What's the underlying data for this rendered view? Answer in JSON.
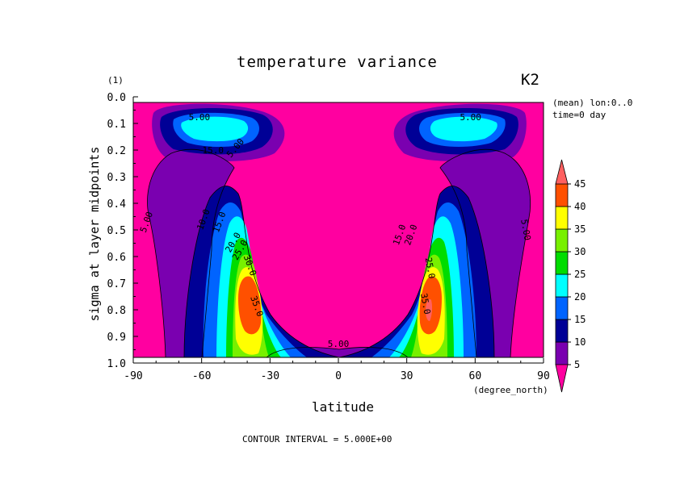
{
  "chart_data": {
    "type": "contour",
    "title": "temperature variance",
    "tag": "K2",
    "ylabel": "sigma at layer midpoints",
    "yunit": "(1)",
    "xlabel": "latitude",
    "xunit": "(degree_north)",
    "info_line1": "(mean) lon:0..0",
    "info_line2": "time=0 day",
    "footer": "CONTOUR INTERVAL = 5.000E+00",
    "xlim": [
      -90,
      90
    ],
    "ylim": [
      1.0,
      0.0
    ],
    "x_ticks": [
      -90,
      -60,
      -30,
      0,
      30,
      60,
      90
    ],
    "x_tick_labels": [
      "-90",
      "-60",
      "-30",
      "0",
      "30",
      "60",
      "90"
    ],
    "y_ticks": [
      0.0,
      0.1,
      0.2,
      0.3,
      0.4,
      0.5,
      0.6,
      0.7,
      0.8,
      0.9,
      1.0
    ],
    "y_tick_labels": [
      "0.0",
      "0.1",
      "0.2",
      "0.3",
      "0.4",
      "0.5",
      "0.6",
      "0.7",
      "0.8",
      "0.9",
      "1.0"
    ],
    "levels": [
      5,
      10,
      15,
      20,
      25,
      30,
      35,
      40,
      45
    ],
    "level_labels": [
      "5",
      "10",
      "15",
      "20",
      "25",
      "30",
      "35",
      "40",
      "45"
    ],
    "colors": [
      "#ff00a0",
      "#7a00b0",
      "#000096",
      "#0064ff",
      "#00ffff",
      "#00dc00",
      "#78f000",
      "#ffff00",
      "#ff5000",
      "#ff6060"
    ],
    "contour_labels": [
      {
        "text": "5.00",
        "lat": -84,
        "sigma": 0.47,
        "rot": -70
      },
      {
        "text": "10.0",
        "lat": -59,
        "sigma": 0.46,
        "rot": -70
      },
      {
        "text": "15.0",
        "lat": -52,
        "sigma": 0.47,
        "rot": -70
      },
      {
        "text": "20.0",
        "lat": -46,
        "sigma": 0.55,
        "rot": -60
      },
      {
        "text": "25.0",
        "lat": -43,
        "sigma": 0.58,
        "rot": -60
      },
      {
        "text": "30.0",
        "lat": -39,
        "sigma": 0.64,
        "rot": 70
      },
      {
        "text": "35.0",
        "lat": -36,
        "sigma": 0.8,
        "rot": 70
      },
      {
        "text": "5.00",
        "lat": 0,
        "sigma": 0.95,
        "rot": 0
      },
      {
        "text": "15.0",
        "lat": 27,
        "sigma": 0.52,
        "rot": -70
      },
      {
        "text": "20.0",
        "lat": 32,
        "sigma": 0.52,
        "rot": -70
      },
      {
        "text": "25.0",
        "lat": 40,
        "sigma": 0.65,
        "rot": 80
      },
      {
        "text": "35.0",
        "lat": 38,
        "sigma": 0.79,
        "rot": 80
      },
      {
        "text": "5.00",
        "lat": 82,
        "sigma": 0.5,
        "rot": 80
      },
      {
        "text": "5.00",
        "lat": -61,
        "sigma": 0.06,
        "rot": 0
      },
      {
        "text": "15.0",
        "lat": -55,
        "sigma": 0.19,
        "rot": 0
      },
      {
        "text": "5.00",
        "lat": -45,
        "sigma": 0.18,
        "rot": -50
      },
      {
        "text": "5.00",
        "lat": 58,
        "sigma": 0.06,
        "rot": 0
      }
    ],
    "grid": false,
    "legend": "right colorbar"
  }
}
